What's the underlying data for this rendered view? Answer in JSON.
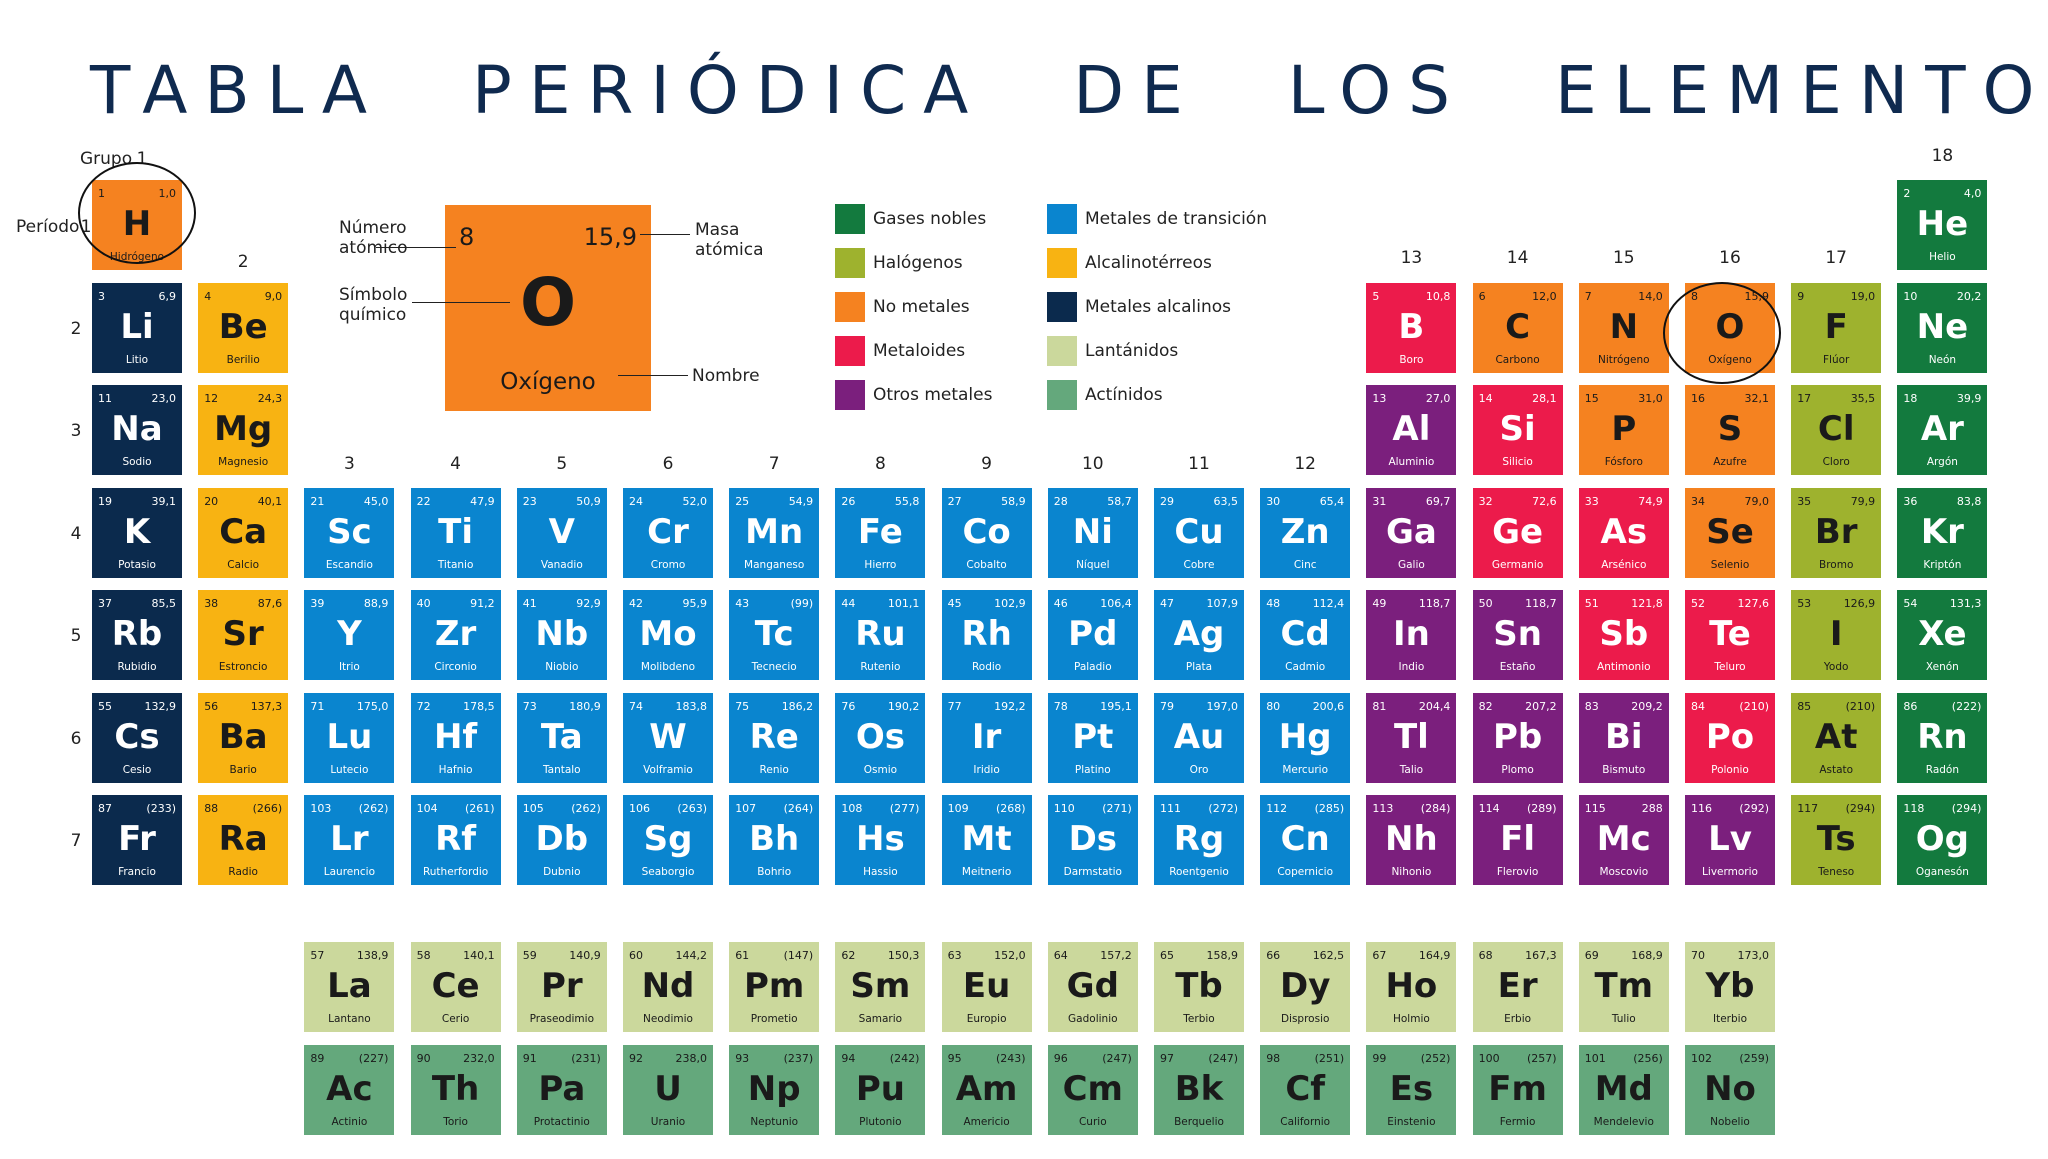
{
  "title": "TABLA PERIÓDICA DE LOS ELEMENTOS",
  "labels": {
    "grupo": "Grupo",
    "periodo": "Período"
  },
  "colors": {
    "noble": "#137a3e",
    "halogen": "#9eb22e",
    "nonmetal": "#f58220",
    "metalloid": "#ec1b4b",
    "post": "#7b1f7d",
    "transition": "#0a85cf",
    "alkaline": "#f8b312",
    "alkali": "#0b2a4d",
    "lanthanide": "#cbd89c",
    "actinide": "#64a87c"
  },
  "legend": [
    {
      "key": "noble",
      "label": "Gases nobles"
    },
    {
      "key": "halogen",
      "label": "Halógenos"
    },
    {
      "key": "nonmetal",
      "label": "No metales"
    },
    {
      "key": "metalloid",
      "label": "Metaloides"
    },
    {
      "key": "post",
      "label": "Otros metales"
    },
    {
      "key": "transition",
      "label": "Metales de transición"
    },
    {
      "key": "alkaline",
      "label": "Alcalinotérreos"
    },
    {
      "key": "alkali",
      "label": "Metales alcalinos"
    },
    {
      "key": "lanthanide",
      "label": "Lantánidos"
    },
    {
      "key": "actinide",
      "label": "Actínidos"
    }
  ],
  "key_element": {
    "number": "8",
    "mass": "15,9",
    "symbol": "O",
    "name": "Oxígeno",
    "label_number": "Número atómico",
    "label_mass": "Masa atómica",
    "label_symbol": "Símbolo químico",
    "label_name": "Nombre"
  },
  "group_numbers": [
    "1",
    "2",
    "3",
    "4",
    "5",
    "6",
    "7",
    "8",
    "9",
    "10",
    "11",
    "12",
    "13",
    "14",
    "15",
    "16",
    "17",
    "18"
  ],
  "period_numbers": [
    "1",
    "2",
    "3",
    "4",
    "5",
    "6",
    "7"
  ],
  "elements": [
    [
      "1",
      "1,0",
      "H",
      "Hidrógeno",
      1,
      1,
      "nonmetal"
    ],
    [
      "2",
      "4,0",
      "He",
      "Helio",
      1,
      18,
      "noble"
    ],
    [
      "3",
      "6,9",
      "Li",
      "Litio",
      2,
      1,
      "alkali"
    ],
    [
      "4",
      "9,0",
      "Be",
      "Berilio",
      2,
      2,
      "alkaline"
    ],
    [
      "5",
      "10,8",
      "B",
      "Boro",
      2,
      13,
      "metalloid"
    ],
    [
      "6",
      "12,0",
      "C",
      "Carbono",
      2,
      14,
      "nonmetal"
    ],
    [
      "7",
      "14,0",
      "N",
      "Nitrógeno",
      2,
      15,
      "nonmetal"
    ],
    [
      "8",
      "15,9",
      "O",
      "Oxígeno",
      2,
      16,
      "nonmetal"
    ],
    [
      "9",
      "19,0",
      "F",
      "Flúor",
      2,
      17,
      "halogen"
    ],
    [
      "10",
      "20,2",
      "Ne",
      "Neón",
      2,
      18,
      "noble"
    ],
    [
      "11",
      "23,0",
      "Na",
      "Sodio",
      3,
      1,
      "alkali"
    ],
    [
      "12",
      "24,3",
      "Mg",
      "Magnesio",
      3,
      2,
      "alkaline"
    ],
    [
      "13",
      "27,0",
      "Al",
      "Aluminio",
      3,
      13,
      "post"
    ],
    [
      "14",
      "28,1",
      "Si",
      "Silicio",
      3,
      14,
      "metalloid"
    ],
    [
      "15",
      "31,0",
      "P",
      "Fósforo",
      3,
      15,
      "nonmetal"
    ],
    [
      "16",
      "32,1",
      "S",
      "Azufre",
      3,
      16,
      "nonmetal"
    ],
    [
      "17",
      "35,5",
      "Cl",
      "Cloro",
      3,
      17,
      "halogen"
    ],
    [
      "18",
      "39,9",
      "Ar",
      "Argón",
      3,
      18,
      "noble"
    ],
    [
      "19",
      "39,1",
      "K",
      "Potasio",
      4,
      1,
      "alkali"
    ],
    [
      "20",
      "40,1",
      "Ca",
      "Calcio",
      4,
      2,
      "alkaline"
    ],
    [
      "21",
      "45,0",
      "Sc",
      "Escandio",
      4,
      3,
      "transition"
    ],
    [
      "22",
      "47,9",
      "Ti",
      "Titanio",
      4,
      4,
      "transition"
    ],
    [
      "23",
      "50,9",
      "V",
      "Vanadio",
      4,
      5,
      "transition"
    ],
    [
      "24",
      "52,0",
      "Cr",
      "Cromo",
      4,
      6,
      "transition"
    ],
    [
      "25",
      "54,9",
      "Mn",
      "Manganeso",
      4,
      7,
      "transition"
    ],
    [
      "26",
      "55,8",
      "Fe",
      "Hierro",
      4,
      8,
      "transition"
    ],
    [
      "27",
      "58,9",
      "Co",
      "Cobalto",
      4,
      9,
      "transition"
    ],
    [
      "28",
      "58,7",
      "Ni",
      "Níquel",
      4,
      10,
      "transition"
    ],
    [
      "29",
      "63,5",
      "Cu",
      "Cobre",
      4,
      11,
      "transition"
    ],
    [
      "30",
      "65,4",
      "Zn",
      "Cinc",
      4,
      12,
      "transition"
    ],
    [
      "31",
      "69,7",
      "Ga",
      "Galio",
      4,
      13,
      "post"
    ],
    [
      "32",
      "72,6",
      "Ge",
      "Germanio",
      4,
      14,
      "metalloid"
    ],
    [
      "33",
      "74,9",
      "As",
      "Arsénico",
      4,
      15,
      "metalloid"
    ],
    [
      "34",
      "79,0",
      "Se",
      "Selenio",
      4,
      16,
      "nonmetal"
    ],
    [
      "35",
      "79,9",
      "Br",
      "Bromo",
      4,
      17,
      "halogen"
    ],
    [
      "36",
      "83,8",
      "Kr",
      "Kriptón",
      4,
      18,
      "noble"
    ],
    [
      "37",
      "85,5",
      "Rb",
      "Rubidio",
      5,
      1,
      "alkali"
    ],
    [
      "38",
      "87,6",
      "Sr",
      "Estroncio",
      5,
      2,
      "alkaline"
    ],
    [
      "39",
      "88,9",
      "Y",
      "Itrio",
      5,
      3,
      "transition"
    ],
    [
      "40",
      "91,2",
      "Zr",
      "Circonio",
      5,
      4,
      "transition"
    ],
    [
      "41",
      "92,9",
      "Nb",
      "Niobio",
      5,
      5,
      "transition"
    ],
    [
      "42",
      "95,9",
      "Mo",
      "Molibdeno",
      5,
      6,
      "transition"
    ],
    [
      "43",
      "(99)",
      "Tc",
      "Tecnecio",
      5,
      7,
      "transition"
    ],
    [
      "44",
      "101,1",
      "Ru",
      "Rutenio",
      5,
      8,
      "transition"
    ],
    [
      "45",
      "102,9",
      "Rh",
      "Rodio",
      5,
      9,
      "transition"
    ],
    [
      "46",
      "106,4",
      "Pd",
      "Paladio",
      5,
      10,
      "transition"
    ],
    [
      "47",
      "107,9",
      "Ag",
      "Plata",
      5,
      11,
      "transition"
    ],
    [
      "48",
      "112,4",
      "Cd",
      "Cadmio",
      5,
      12,
      "transition"
    ],
    [
      "49",
      "118,7",
      "In",
      "Indio",
      5,
      13,
      "post"
    ],
    [
      "50",
      "118,7",
      "Sn",
      "Estaño",
      5,
      14,
      "post"
    ],
    [
      "51",
      "121,8",
      "Sb",
      "Antimonio",
      5,
      15,
      "metalloid"
    ],
    [
      "52",
      "127,6",
      "Te",
      "Teluro",
      5,
      16,
      "metalloid"
    ],
    [
      "53",
      "126,9",
      "I",
      "Yodo",
      5,
      17,
      "halogen"
    ],
    [
      "54",
      "131,3",
      "Xe",
      "Xenón",
      5,
      18,
      "noble"
    ],
    [
      "55",
      "132,9",
      "Cs",
      "Cesio",
      6,
      1,
      "alkali"
    ],
    [
      "56",
      "137,3",
      "Ba",
      "Bario",
      6,
      2,
      "alkaline"
    ],
    [
      "71",
      "175,0",
      "Lu",
      "Lutecio",
      6,
      3,
      "transition"
    ],
    [
      "72",
      "178,5",
      "Hf",
      "Hafnio",
      6,
      4,
      "transition"
    ],
    [
      "73",
      "180,9",
      "Ta",
      "Tantalo",
      6,
      5,
      "transition"
    ],
    [
      "74",
      "183,8",
      "W",
      "Volframio",
      6,
      6,
      "transition"
    ],
    [
      "75",
      "186,2",
      "Re",
      "Renio",
      6,
      7,
      "transition"
    ],
    [
      "76",
      "190,2",
      "Os",
      "Osmio",
      6,
      8,
      "transition"
    ],
    [
      "77",
      "192,2",
      "Ir",
      "Iridio",
      6,
      9,
      "transition"
    ],
    [
      "78",
      "195,1",
      "Pt",
      "Platino",
      6,
      10,
      "transition"
    ],
    [
      "79",
      "197,0",
      "Au",
      "Oro",
      6,
      11,
      "transition"
    ],
    [
      "80",
      "200,6",
      "Hg",
      "Mercurio",
      6,
      12,
      "transition"
    ],
    [
      "81",
      "204,4",
      "Tl",
      "Talio",
      6,
      13,
      "post"
    ],
    [
      "82",
      "207,2",
      "Pb",
      "Plomo",
      6,
      14,
      "post"
    ],
    [
      "83",
      "209,2",
      "Bi",
      "Bismuto",
      6,
      15,
      "post"
    ],
    [
      "84",
      "(210)",
      "Po",
      "Polonio",
      6,
      16,
      "metalloid"
    ],
    [
      "85",
      "(210)",
      "At",
      "Astato",
      6,
      17,
      "halogen"
    ],
    [
      "86",
      "(222)",
      "Rn",
      "Radón",
      6,
      18,
      "noble"
    ],
    [
      "87",
      "(233)",
      "Fr",
      "Francio",
      7,
      1,
      "alkali"
    ],
    [
      "88",
      "(266)",
      "Ra",
      "Radio",
      7,
      2,
      "alkaline"
    ],
    [
      "103",
      "(262)",
      "Lr",
      "Laurencio",
      7,
      3,
      "transition"
    ],
    [
      "104",
      "(261)",
      "Rf",
      "Rutherfordio",
      7,
      4,
      "transition"
    ],
    [
      "105",
      "(262)",
      "Db",
      "Dubnio",
      7,
      5,
      "transition"
    ],
    [
      "106",
      "(263)",
      "Sg",
      "Seaborgio",
      7,
      6,
      "transition"
    ],
    [
      "107",
      "(264)",
      "Bh",
      "Bohrio",
      7,
      7,
      "transition"
    ],
    [
      "108",
      "(277)",
      "Hs",
      "Hassio",
      7,
      8,
      "transition"
    ],
    [
      "109",
      "(268)",
      "Mt",
      "Meitnerio",
      7,
      9,
      "transition"
    ],
    [
      "110",
      "(271)",
      "Ds",
      "Darmstatio",
      7,
      10,
      "transition"
    ],
    [
      "111",
      "(272)",
      "Rg",
      "Roentgenio",
      7,
      11,
      "transition"
    ],
    [
      "112",
      "(285)",
      "Cn",
      "Copernicio",
      7,
      12,
      "transition"
    ],
    [
      "113",
      "(284)",
      "Nh",
      "Nihonio",
      7,
      13,
      "post"
    ],
    [
      "114",
      "(289)",
      "Fl",
      "Flerovio",
      7,
      14,
      "post"
    ],
    [
      "115",
      "288",
      "Mc",
      "Moscovio",
      7,
      15,
      "post"
    ],
    [
      "116",
      "(292)",
      "Lv",
      "Livermorio",
      7,
      16,
      "post"
    ],
    [
      "117",
      "(294)",
      "Ts",
      "Teneso",
      7,
      17,
      "halogen"
    ],
    [
      "118",
      "(294)",
      "Og",
      "Oganesón",
      7,
      18,
      "noble"
    ],
    [
      "57",
      "138,9",
      "La",
      "Lantano",
      9,
      3,
      "lanthanide"
    ],
    [
      "58",
      "140,1",
      "Ce",
      "Cerio",
      9,
      4,
      "lanthanide"
    ],
    [
      "59",
      "140,9",
      "Pr",
      "Praseodimio",
      9,
      5,
      "lanthanide"
    ],
    [
      "60",
      "144,2",
      "Nd",
      "Neodimio",
      9,
      6,
      "lanthanide"
    ],
    [
      "61",
      "(147)",
      "Pm",
      "Prometio",
      9,
      7,
      "lanthanide"
    ],
    [
      "62",
      "150,3",
      "Sm",
      "Samario",
      9,
      8,
      "lanthanide"
    ],
    [
      "63",
      "152,0",
      "Eu",
      "Europio",
      9,
      9,
      "lanthanide"
    ],
    [
      "64",
      "157,2",
      "Gd",
      "Gadolinio",
      9,
      10,
      "lanthanide"
    ],
    [
      "65",
      "158,9",
      "Tb",
      "Terbio",
      9,
      11,
      "lanthanide"
    ],
    [
      "66",
      "162,5",
      "Dy",
      "Disprosio",
      9,
      12,
      "lanthanide"
    ],
    [
      "67",
      "164,9",
      "Ho",
      "Holmio",
      9,
      13,
      "lanthanide"
    ],
    [
      "68",
      "167,3",
      "Er",
      "Erbio",
      9,
      14,
      "lanthanide"
    ],
    [
      "69",
      "168,9",
      "Tm",
      "Tulio",
      9,
      15,
      "lanthanide"
    ],
    [
      "70",
      "173,0",
      "Yb",
      "Iterbio",
      9,
      16,
      "lanthanide"
    ],
    [
      "89",
      "(227)",
      "Ac",
      "Actinio",
      10,
      3,
      "actinide"
    ],
    [
      "90",
      "232,0",
      "Th",
      "Torio",
      10,
      4,
      "actinide"
    ],
    [
      "91",
      "(231)",
      "Pa",
      "Protactinio",
      10,
      5,
      "actinide"
    ],
    [
      "92",
      "238,0",
      "U",
      "Uranio",
      10,
      6,
      "actinide"
    ],
    [
      "93",
      "(237)",
      "Np",
      "Neptunio",
      10,
      7,
      "actinide"
    ],
    [
      "94",
      "(242)",
      "Pu",
      "Plutonio",
      10,
      8,
      "actinide"
    ],
    [
      "95",
      "(243)",
      "Am",
      "Americio",
      10,
      9,
      "actinide"
    ],
    [
      "96",
      "(247)",
      "Cm",
      "Curio",
      10,
      10,
      "actinide"
    ],
    [
      "97",
      "(247)",
      "Bk",
      "Berquelio",
      10,
      11,
      "actinide"
    ],
    [
      "98",
      "(251)",
      "Cf",
      "Californio",
      10,
      12,
      "actinide"
    ],
    [
      "99",
      "(252)",
      "Es",
      "Einstenio",
      10,
      13,
      "actinide"
    ],
    [
      "100",
      "(257)",
      "Fm",
      "Fermio",
      10,
      14,
      "actinide"
    ],
    [
      "101",
      "(256)",
      "Md",
      "Mendelevio",
      10,
      15,
      "actinide"
    ],
    [
      "102",
      "(259)",
      "No",
      "Nobelio",
      10,
      16,
      "actinide"
    ]
  ]
}
